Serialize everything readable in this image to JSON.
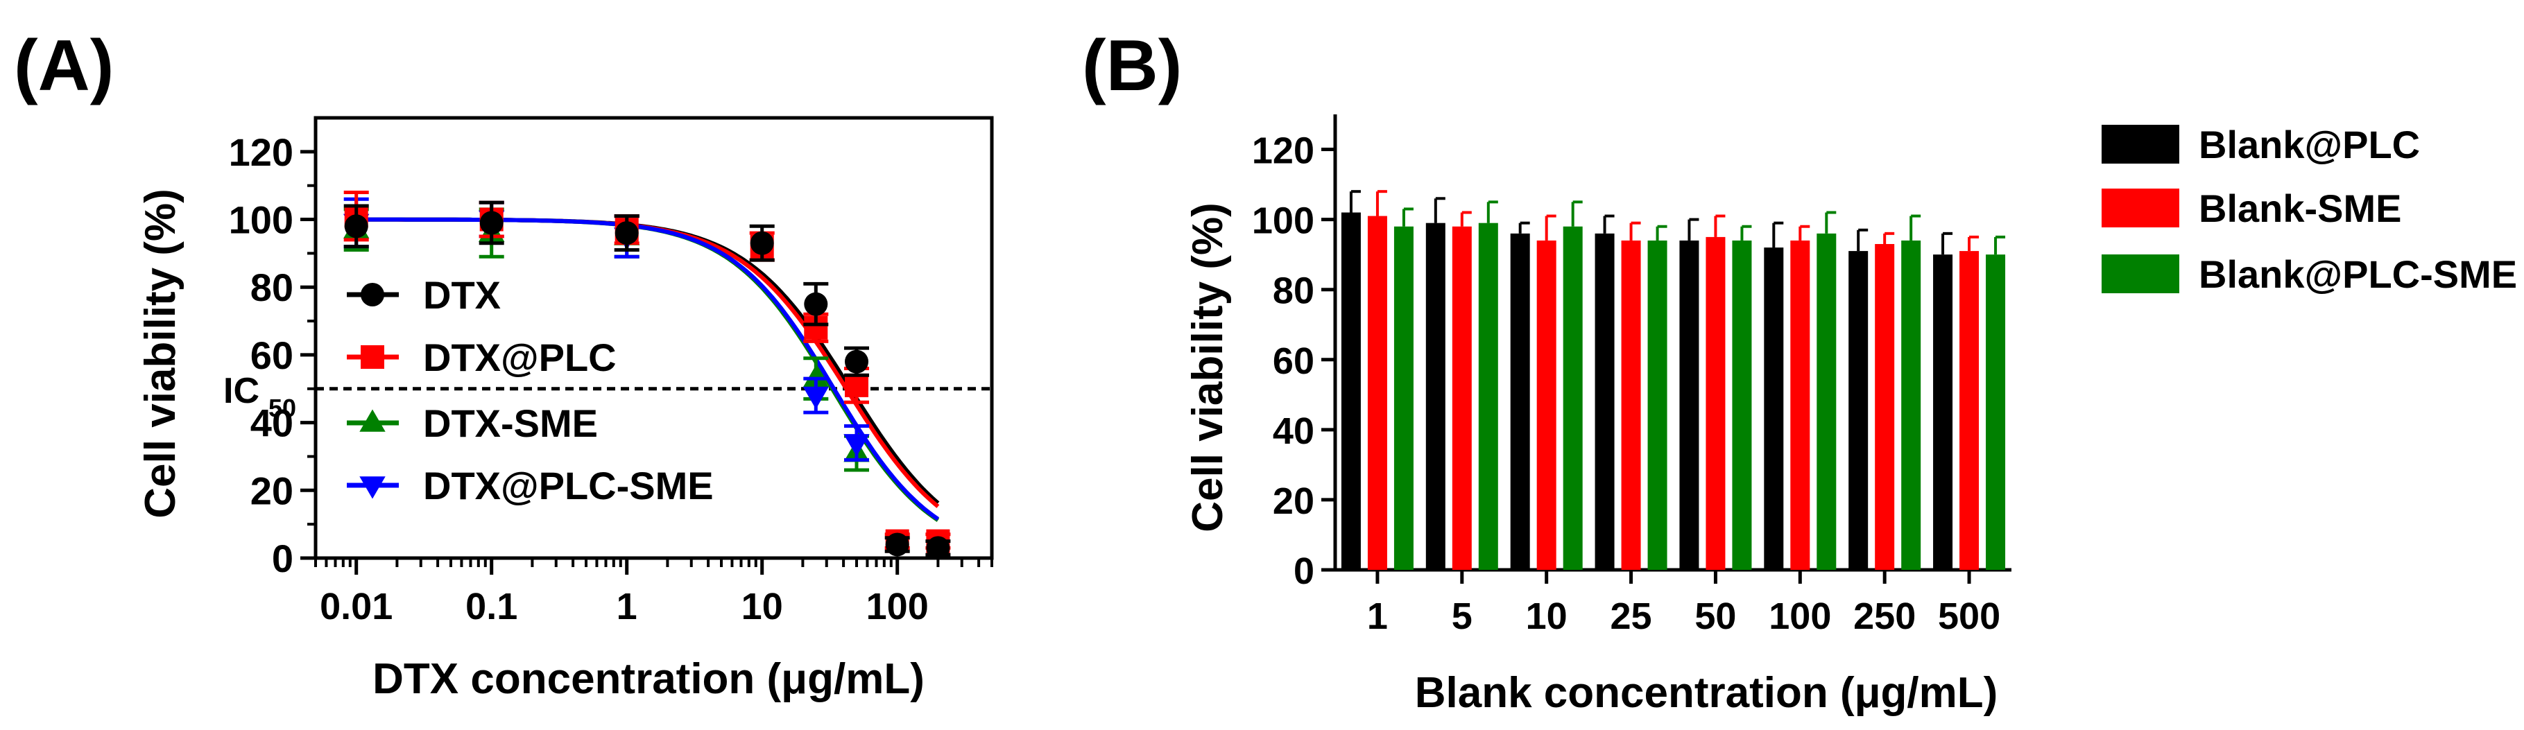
{
  "chart_data": [
    {
      "panel_label": "(A)",
      "type": "scatter",
      "title": "",
      "xlabel": "DTX concentration (μg/mL)",
      "ylabel": "Cell viability (%)",
      "xscale": "log",
      "xlim": [
        0.005,
        500
      ],
      "ylim": [
        0,
        130
      ],
      "x_ticks": [
        0.01,
        0.1,
        1,
        10,
        100
      ],
      "x_tick_labels": [
        "0.01",
        "0.1",
        "1",
        "10",
        "100"
      ],
      "y_ticks": [
        0,
        20,
        40,
        60,
        80,
        100,
        120
      ],
      "y_tick_labels": [
        "0",
        "20",
        "40",
        "60",
        "80",
        "100",
        "120"
      ],
      "reference_line": {
        "y": 50,
        "label": "IC",
        "label_sub": "50",
        "style": "dashed"
      },
      "legend_position": "inside-left",
      "series": [
        {
          "name": "DTX",
          "color": "#000000",
          "marker": "circle",
          "x": [
            0.01,
            0.1,
            1,
            10,
            25,
            50,
            100,
            200
          ],
          "y": [
            98,
            99,
            96,
            93,
            75,
            58,
            4,
            3
          ],
          "err": [
            6,
            6,
            5,
            5,
            6,
            4,
            2,
            2
          ],
          "fit": {
            "top": 100,
            "bottom": 0,
            "ec50": 45,
            "hill": 1.1
          }
        },
        {
          "name": "DTX@PLC",
          "color": "#ff0000",
          "marker": "square",
          "x": [
            0.01,
            0.1,
            1,
            10,
            25,
            50,
            100,
            200
          ],
          "y": [
            101,
            100,
            97,
            92,
            68,
            51,
            5,
            5
          ],
          "err": [
            7,
            5,
            4,
            4,
            4,
            5,
            2,
            2
          ],
          "fit": {
            "top": 100,
            "bottom": 0,
            "ec50": 42,
            "hill": 1.1
          }
        },
        {
          "name": "DTX-SME",
          "color": "#008000",
          "marker": "triangle-up",
          "x": [
            0.01,
            0.1,
            1,
            25,
            50
          ],
          "y": [
            97,
            96,
            95,
            53,
            31
          ],
          "err": [
            6,
            7,
            6,
            6,
            5
          ],
          "fit": {
            "top": 100,
            "bottom": 0,
            "ec50": 33,
            "hill": 1.15
          }
        },
        {
          "name": "DTX@PLC-SME",
          "color": "#0000ff",
          "marker": "triangle-down",
          "x": [
            0.01,
            0.1,
            1,
            25,
            50
          ],
          "y": [
            99,
            100,
            95,
            48,
            34
          ],
          "err": [
            7,
            5,
            6,
            5,
            5
          ],
          "fit": {
            "top": 100,
            "bottom": 0,
            "ec50": 34,
            "hill": 1.15
          }
        }
      ]
    },
    {
      "panel_label": "(B)",
      "type": "bar",
      "title": "",
      "xlabel": "Blank concentration (μg/mL)",
      "ylabel": "Cell viability (%)",
      "ylim": [
        0,
        130
      ],
      "y_ticks": [
        0,
        20,
        40,
        60,
        80,
        100,
        120
      ],
      "y_tick_labels": [
        "0",
        "20",
        "40",
        "60",
        "80",
        "100",
        "120"
      ],
      "categories": [
        "1",
        "5",
        "10",
        "25",
        "50",
        "100",
        "250",
        "500"
      ],
      "legend_position": "right",
      "series": [
        {
          "name": "Blank@PLC",
          "color": "#000000",
          "values": [
            102,
            99,
            96,
            96,
            94,
            92,
            91,
            90
          ],
          "err": [
            6,
            7,
            3,
            5,
            6,
            7,
            6,
            6
          ]
        },
        {
          "name": "Blank-SME",
          "color": "#ff0000",
          "values": [
            101,
            98,
            94,
            94,
            95,
            94,
            93,
            91
          ],
          "err": [
            7,
            4,
            7,
            5,
            6,
            4,
            3,
            4
          ]
        },
        {
          "name": "Blank@PLC-SME",
          "color": "#008000",
          "values": [
            98,
            99,
            98,
            94,
            94,
            96,
            94,
            90
          ],
          "err": [
            5,
            6,
            7,
            4,
            4,
            6,
            7,
            5
          ]
        }
      ]
    }
  ]
}
